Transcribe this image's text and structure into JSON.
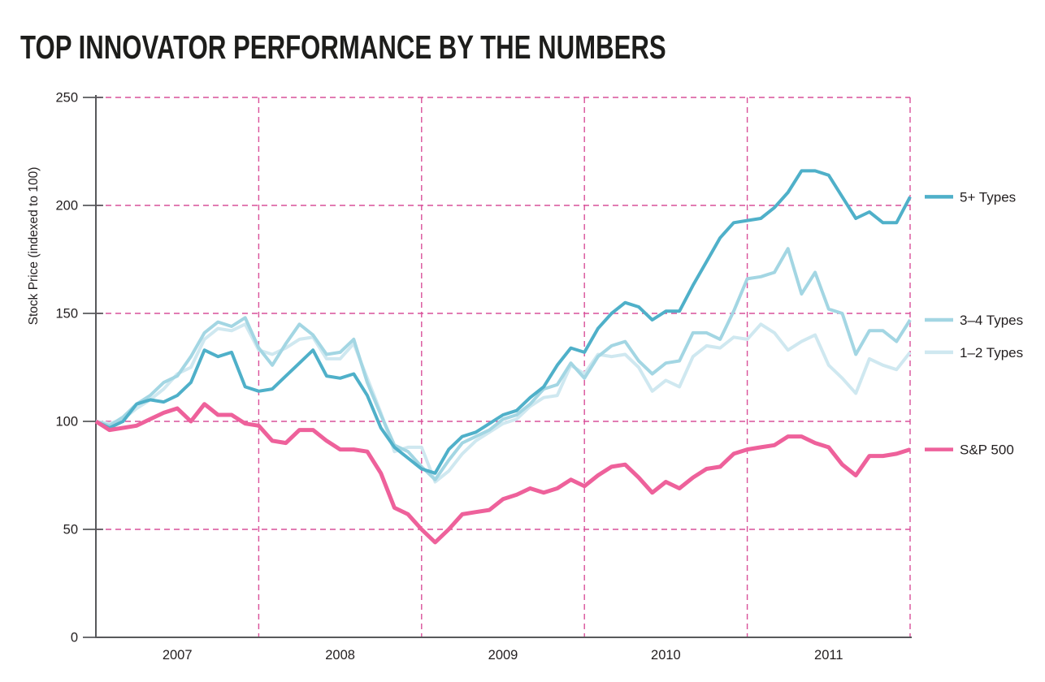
{
  "page_title": "TOP INNOVATOR PERFORMANCE BY THE NUMBERS",
  "chart_data": {
    "type": "line",
    "title": "TOP INNOVATOR PERFORMANCE BY THE NUMBERS",
    "ylabel": "Stock Price (indexed to 100)",
    "xlabel": "",
    "ylim": [
      0,
      250
    ],
    "y_ticks": [
      0,
      50,
      100,
      150,
      200,
      250
    ],
    "x_tick_labels": [
      "2007",
      "2008",
      "2009",
      "2010",
      "2011"
    ],
    "x_unit": "monthly points, Jan 2007 through end of 2011 (61 samples), indexed to 100 at start",
    "grid": {
      "style": "dashed",
      "color": "#d9509a",
      "horizontal_at": [
        50,
        100,
        150,
        200,
        250
      ],
      "vertical_at": [
        "2008",
        "2009",
        "2010",
        "2011",
        "2012"
      ]
    },
    "axis_color": "#58595b",
    "legend_position": "right of plot, each label aligned with the series end value",
    "series": [
      {
        "name": "5+ Types",
        "color": "#4fb0c9",
        "values": [
          100,
          97,
          100,
          108,
          110,
          109,
          112,
          118,
          133,
          130,
          132,
          116,
          114,
          115,
          121,
          127,
          133,
          121,
          120,
          122,
          112,
          97,
          88,
          83,
          78,
          76,
          87,
          93,
          95,
          99,
          103,
          105,
          111,
          116,
          126,
          134,
          132,
          143,
          150,
          155,
          153,
          147,
          151,
          151,
          163,
          174,
          185,
          192,
          193,
          194,
          199,
          206,
          216,
          216,
          214,
          204,
          194,
          197,
          192,
          192,
          204
        ]
      },
      {
        "name": "3–4 Types",
        "color": "#a3d6e3",
        "values": [
          100,
          98,
          102,
          108,
          112,
          118,
          121,
          130,
          141,
          146,
          144,
          148,
          134,
          126,
          136,
          145,
          140,
          131,
          132,
          138,
          118,
          103,
          89,
          86,
          79,
          73,
          82,
          90,
          93,
          96,
          101,
          103,
          108,
          115,
          117,
          127,
          120,
          130,
          135,
          137,
          128,
          122,
          127,
          128,
          141,
          141,
          138,
          151,
          166,
          167,
          169,
          180,
          159,
          169,
          152,
          150,
          131,
          142,
          142,
          137,
          147
        ]
      },
      {
        "name": "1–2 Types",
        "color": "#cfe8f0",
        "values": [
          100,
          99,
          101,
          106,
          110,
          115,
          122,
          125,
          138,
          143,
          142,
          145,
          133,
          131,
          134,
          138,
          139,
          129,
          129,
          136,
          120,
          104,
          86,
          88,
          88,
          72,
          77,
          85,
          91,
          95,
          99,
          101,
          107,
          111,
          112,
          126,
          122,
          131,
          130,
          131,
          125,
          114,
          119,
          116,
          130,
          135,
          134,
          139,
          138,
          145,
          141,
          133,
          137,
          140,
          126,
          120,
          113,
          129,
          126,
          124,
          132
        ]
      },
      {
        "name": "S&P 500",
        "color": "#ee619b",
        "values": [
          100,
          96,
          97,
          98,
          101,
          104,
          106,
          100,
          108,
          103,
          103,
          99,
          98,
          91,
          90,
          96,
          96,
          91,
          87,
          87,
          86,
          76,
          60,
          57,
          50,
          44,
          50,
          57,
          58,
          59,
          64,
          66,
          69,
          67,
          69,
          73,
          70,
          75,
          79,
          80,
          74,
          67,
          72,
          69,
          74,
          78,
          79,
          85,
          87,
          88,
          89,
          93,
          93,
          90,
          88,
          80,
          75,
          84,
          84,
          85,
          87
        ]
      }
    ]
  }
}
